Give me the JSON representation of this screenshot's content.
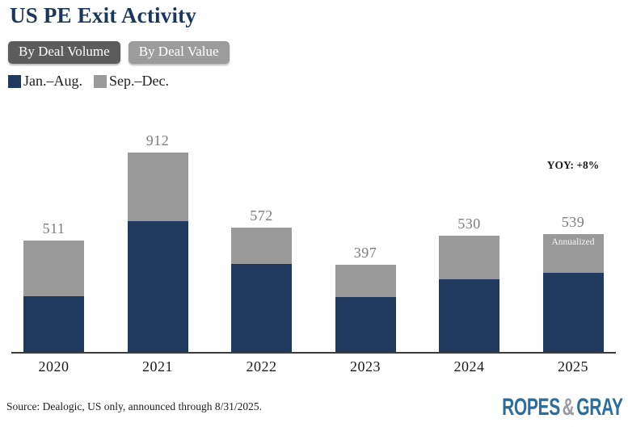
{
  "title": "US PE Exit Activity",
  "toggles": {
    "by_deal_volume": "By Deal Volume",
    "by_deal_value": "By Deal Value"
  },
  "legend": {
    "items": [
      {
        "label": "Jan.–Aug.",
        "color": "#1f3a5e"
      },
      {
        "label": "Sep.–Dec.",
        "color": "#9a9a9a"
      }
    ]
  },
  "annotations": {
    "yoy": "YOY: +8%",
    "annualized": "Annualized"
  },
  "footer": {
    "source": "Source: Dealogic, US only, announced through 8/31/2025.",
    "logo": {
      "word1": "ROPES",
      "amp": "&",
      "word2": "GRAY"
    }
  },
  "chart_data": {
    "type": "bar",
    "stacked": true,
    "title": "US PE Exit Activity",
    "categories": [
      "2020",
      "2021",
      "2022",
      "2023",
      "2024",
      "2025"
    ],
    "series": [
      {
        "name": "Jan.–Aug.",
        "color": "#1f3a5e",
        "values": [
          255,
          598,
          404,
          250,
          331,
          361
        ]
      },
      {
        "name": "Sep.–Dec.",
        "color": "#9a9a9a",
        "values": [
          256,
          314,
          168,
          147,
          199,
          178
        ]
      }
    ],
    "totals": [
      511,
      912,
      572,
      397,
      530,
      539
    ],
    "xlabel": "",
    "ylabel": "",
    "ylim": [
      0,
      950
    ],
    "grid": false,
    "legend_position": "top-left",
    "annualized_category": "2025",
    "yoy_label": "YOY: +8%",
    "yoy_category": "2025"
  }
}
